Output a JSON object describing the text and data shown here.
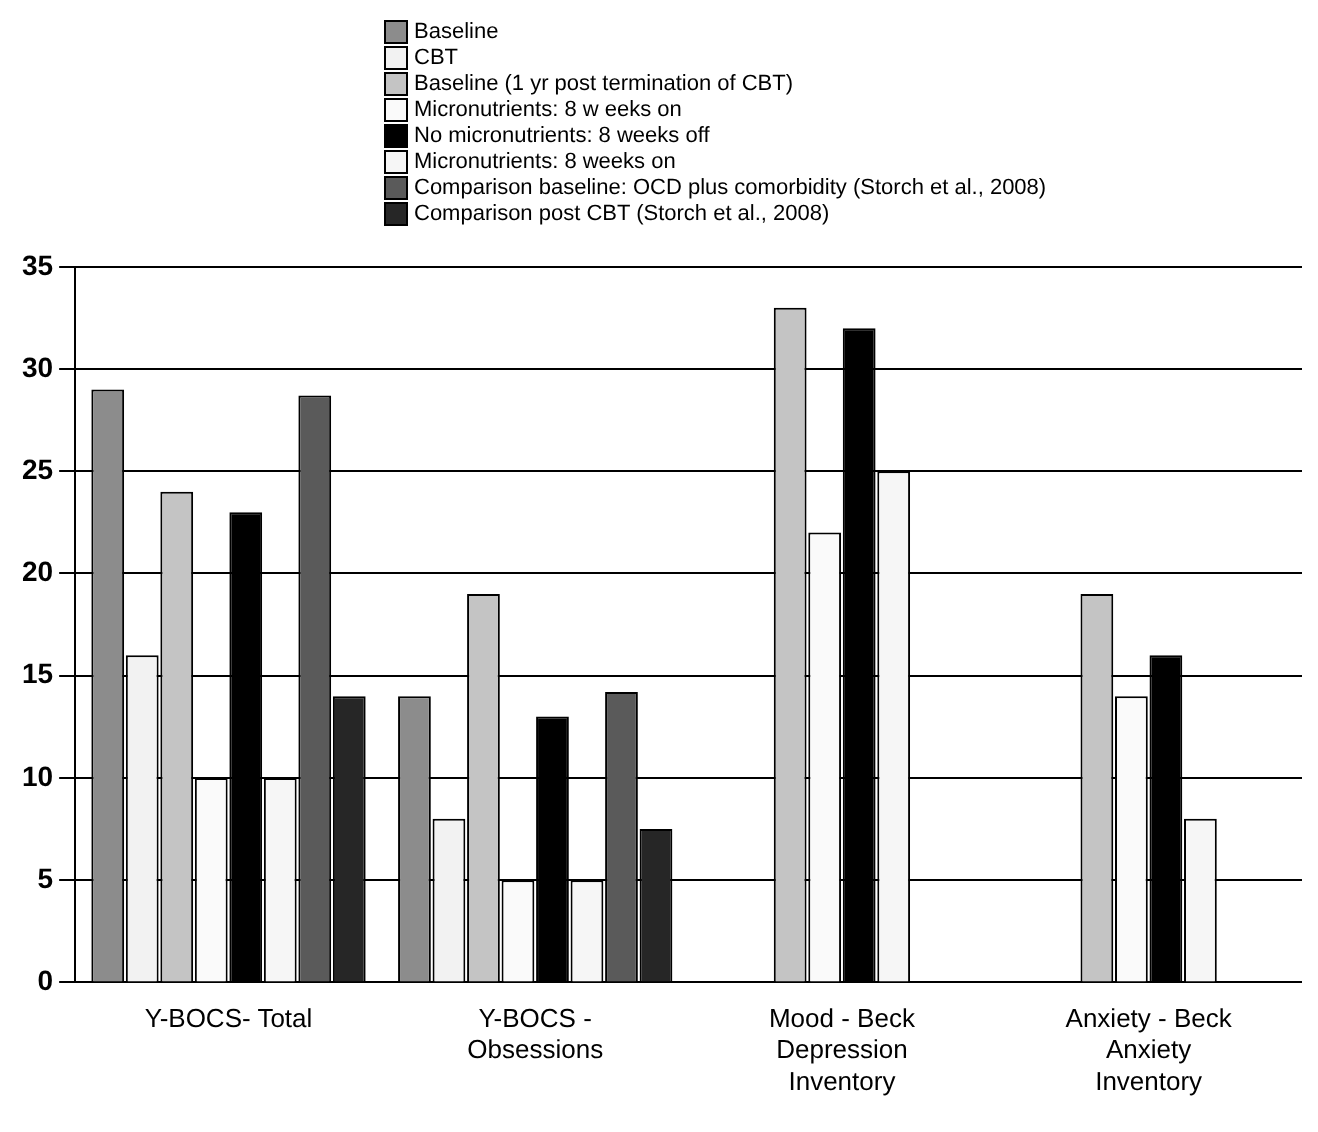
{
  "chart_data": {
    "type": "bar",
    "categories": [
      "Y-BOCS- Total",
      "Y-BOCS - Obsessions",
      "Mood - Beck Depression Inventory",
      "Anxiety - Beck Anxiety Inventory"
    ],
    "series": [
      {
        "name": "Baseline",
        "color": "#8c8c8c",
        "values": [
          29,
          14,
          null,
          null
        ]
      },
      {
        "name": "CBT",
        "color": "#f2f2f2",
        "values": [
          16,
          8,
          null,
          null
        ]
      },
      {
        "name": "Baseline (1 yr post termination of CBT)",
        "color": "#c4c4c4",
        "values": [
          24,
          19,
          33,
          19
        ]
      },
      {
        "name": "Micronutrients: 8 w eeks on",
        "color": "#fafafa",
        "values": [
          10,
          5,
          22,
          14
        ]
      },
      {
        "name": "No micronutrients: 8 weeks off",
        "color": "#000000",
        "values": [
          23,
          13,
          32,
          16
        ]
      },
      {
        "name": "Micronutrients: 8 weeks on",
        "color": "#f6f6f6",
        "values": [
          10,
          5,
          25,
          8
        ]
      },
      {
        "name": "Comparison baseline: OCD plus comorbidity (Storch et al., 2008)",
        "color": "#5a5a5a",
        "values": [
          28.7,
          14.2,
          null,
          null
        ]
      },
      {
        "name": "Comparison post CBT (Storch et al., 2008)",
        "color": "#262626",
        "values": [
          14,
          7.5,
          null,
          null
        ]
      }
    ],
    "ylim": [
      0,
      35
    ],
    "yticks": [
      0,
      5,
      10,
      15,
      20,
      25,
      30,
      35
    ],
    "grid": "y",
    "legend": "top"
  }
}
